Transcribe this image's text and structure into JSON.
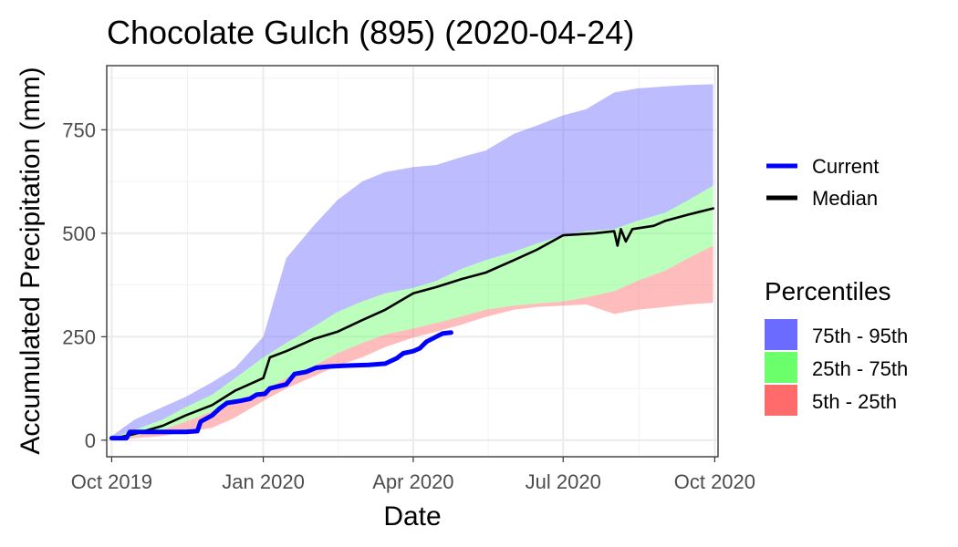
{
  "chart_data": {
    "type": "area",
    "title": "Chocolate Gulch (895) (2020-04-24)",
    "xlabel": "Date",
    "ylabel": "Accumulated Precipitation (mm)",
    "x_domain": [
      "2019-09-28",
      "2020-10-03"
    ],
    "ylim": [
      -40,
      905
    ],
    "x_ticks": [
      {
        "date": "2019-10-01",
        "label": "Oct 2019"
      },
      {
        "date": "2020-01-01",
        "label": "Jan 2020"
      },
      {
        "date": "2020-04-01",
        "label": "Apr 2020"
      },
      {
        "date": "2020-07-01",
        "label": "Jul 2020"
      },
      {
        "date": "2020-10-01",
        "label": "Oct 2020"
      }
    ],
    "y_ticks": [
      {
        "value": 0,
        "label": "0"
      },
      {
        "value": 250,
        "label": "250"
      },
      {
        "value": 500,
        "label": "500"
      },
      {
        "value": 750,
        "label": "750"
      }
    ],
    "grid": true,
    "legend_position": "right",
    "bands": [
      {
        "label": "75th - 95th",
        "color": "#6b6bff",
        "lower": [
          [
            "2019-10-01",
            5
          ],
          [
            "2019-10-15",
            25
          ],
          [
            "2019-11-01",
            50
          ],
          [
            "2019-11-15",
            80
          ],
          [
            "2019-12-01",
            110
          ],
          [
            "2019-12-15",
            150
          ],
          [
            "2020-01-01",
            200
          ],
          [
            "2020-01-15",
            235
          ],
          [
            "2020-02-01",
            275
          ],
          [
            "2020-02-15",
            310
          ],
          [
            "2020-03-01",
            335
          ],
          [
            "2020-03-15",
            355
          ],
          [
            "2020-04-01",
            368
          ],
          [
            "2020-04-15",
            385
          ],
          [
            "2020-05-01",
            415
          ],
          [
            "2020-05-15",
            435
          ],
          [
            "2020-06-01",
            455
          ],
          [
            "2020-06-15",
            475
          ],
          [
            "2020-07-01",
            495
          ],
          [
            "2020-07-15",
            505
          ],
          [
            "2020-08-01",
            510
          ],
          [
            "2020-08-15",
            530
          ],
          [
            "2020-09-01",
            550
          ],
          [
            "2020-09-15",
            580
          ],
          [
            "2020-09-30",
            615
          ]
        ],
        "upper": [
          [
            "2019-10-01",
            10
          ],
          [
            "2019-10-15",
            50
          ],
          [
            "2019-11-01",
            80
          ],
          [
            "2019-11-15",
            105
          ],
          [
            "2019-12-01",
            140
          ],
          [
            "2019-12-15",
            175
          ],
          [
            "2020-01-01",
            250
          ],
          [
            "2020-01-15",
            440
          ],
          [
            "2020-02-01",
            520
          ],
          [
            "2020-02-15",
            580
          ],
          [
            "2020-03-01",
            625
          ],
          [
            "2020-03-15",
            648
          ],
          [
            "2020-04-01",
            660
          ],
          [
            "2020-04-15",
            665
          ],
          [
            "2020-05-01",
            685
          ],
          [
            "2020-05-15",
            700
          ],
          [
            "2020-06-01",
            740
          ],
          [
            "2020-06-15",
            760
          ],
          [
            "2020-07-01",
            785
          ],
          [
            "2020-07-15",
            800
          ],
          [
            "2020-08-01",
            840
          ],
          [
            "2020-08-15",
            850
          ],
          [
            "2020-09-01",
            855
          ],
          [
            "2020-09-15",
            858
          ],
          [
            "2020-09-30",
            860
          ]
        ]
      },
      {
        "label": "25th - 75th",
        "color": "#6bff6b",
        "lower": [
          [
            "2019-10-01",
            3
          ],
          [
            "2019-10-15",
            10
          ],
          [
            "2019-11-01",
            25
          ],
          [
            "2019-11-15",
            45
          ],
          [
            "2019-12-01",
            70
          ],
          [
            "2019-12-15",
            95
          ],
          [
            "2020-01-01",
            120
          ],
          [
            "2020-01-15",
            150
          ],
          [
            "2020-02-01",
            180
          ],
          [
            "2020-02-15",
            210
          ],
          [
            "2020-03-01",
            235
          ],
          [
            "2020-03-15",
            255
          ],
          [
            "2020-04-01",
            270
          ],
          [
            "2020-04-15",
            283
          ],
          [
            "2020-05-01",
            300
          ],
          [
            "2020-05-15",
            315
          ],
          [
            "2020-06-01",
            325
          ],
          [
            "2020-06-15",
            330
          ],
          [
            "2020-07-01",
            335
          ],
          [
            "2020-07-15",
            345
          ],
          [
            "2020-08-01",
            360
          ],
          [
            "2020-08-15",
            385
          ],
          [
            "2020-09-01",
            410
          ],
          [
            "2020-09-15",
            440
          ],
          [
            "2020-09-30",
            470
          ]
        ],
        "upper": [
          [
            "2019-10-01",
            5
          ],
          [
            "2019-10-15",
            25
          ],
          [
            "2019-11-01",
            50
          ],
          [
            "2019-11-15",
            80
          ],
          [
            "2019-12-01",
            110
          ],
          [
            "2019-12-15",
            150
          ],
          [
            "2020-01-01",
            200
          ],
          [
            "2020-01-15",
            235
          ],
          [
            "2020-02-01",
            275
          ],
          [
            "2020-02-15",
            310
          ],
          [
            "2020-03-01",
            335
          ],
          [
            "2020-03-15",
            355
          ],
          [
            "2020-04-01",
            368
          ],
          [
            "2020-04-15",
            385
          ],
          [
            "2020-05-01",
            415
          ],
          [
            "2020-05-15",
            435
          ],
          [
            "2020-06-01",
            455
          ],
          [
            "2020-06-15",
            475
          ],
          [
            "2020-07-01",
            495
          ],
          [
            "2020-07-15",
            505
          ],
          [
            "2020-08-01",
            510
          ],
          [
            "2020-08-15",
            530
          ],
          [
            "2020-09-01",
            550
          ],
          [
            "2020-09-15",
            580
          ],
          [
            "2020-09-30",
            615
          ]
        ]
      },
      {
        "label": "5th - 25th",
        "color": "#ff6b6b",
        "lower": [
          [
            "2019-10-01",
            0
          ],
          [
            "2019-10-15",
            5
          ],
          [
            "2019-11-01",
            10
          ],
          [
            "2019-11-15",
            20
          ],
          [
            "2019-12-01",
            30
          ],
          [
            "2019-12-15",
            55
          ],
          [
            "2020-01-01",
            95
          ],
          [
            "2020-01-15",
            125
          ],
          [
            "2020-02-01",
            155
          ],
          [
            "2020-02-15",
            180
          ],
          [
            "2020-03-01",
            200
          ],
          [
            "2020-03-15",
            225
          ],
          [
            "2020-04-01",
            248
          ],
          [
            "2020-04-15",
            262
          ],
          [
            "2020-05-01",
            280
          ],
          [
            "2020-05-15",
            298
          ],
          [
            "2020-06-01",
            315
          ],
          [
            "2020-06-15",
            322
          ],
          [
            "2020-07-01",
            325
          ],
          [
            "2020-07-15",
            328
          ],
          [
            "2020-08-01",
            305
          ],
          [
            "2020-08-15",
            315
          ],
          [
            "2020-09-01",
            322
          ],
          [
            "2020-09-15",
            328
          ],
          [
            "2020-09-30",
            332
          ]
        ],
        "upper": [
          [
            "2019-10-01",
            3
          ],
          [
            "2019-10-15",
            10
          ],
          [
            "2019-11-01",
            25
          ],
          [
            "2019-11-15",
            45
          ],
          [
            "2019-12-01",
            70
          ],
          [
            "2019-12-15",
            95
          ],
          [
            "2020-01-01",
            120
          ],
          [
            "2020-01-15",
            150
          ],
          [
            "2020-02-01",
            180
          ],
          [
            "2020-02-15",
            210
          ],
          [
            "2020-03-01",
            235
          ],
          [
            "2020-03-15",
            255
          ],
          [
            "2020-04-01",
            270
          ],
          [
            "2020-04-15",
            283
          ],
          [
            "2020-05-01",
            300
          ],
          [
            "2020-05-15",
            315
          ],
          [
            "2020-06-01",
            325
          ],
          [
            "2020-06-15",
            330
          ],
          [
            "2020-07-01",
            335
          ],
          [
            "2020-07-15",
            345
          ],
          [
            "2020-08-01",
            360
          ],
          [
            "2020-08-15",
            385
          ],
          [
            "2020-09-01",
            410
          ],
          [
            "2020-09-15",
            440
          ],
          [
            "2020-09-30",
            470
          ]
        ]
      }
    ],
    "series": [
      {
        "name": "Current",
        "color": "#0000ff",
        "points": [
          [
            "2019-10-01",
            5
          ],
          [
            "2019-10-10",
            5
          ],
          [
            "2019-10-12",
            20
          ],
          [
            "2019-11-15",
            20
          ],
          [
            "2019-11-22",
            22
          ],
          [
            "2019-11-24",
            45
          ],
          [
            "2019-12-01",
            60
          ],
          [
            "2019-12-05",
            75
          ],
          [
            "2019-12-10",
            90
          ],
          [
            "2019-12-18",
            95
          ],
          [
            "2019-12-24",
            100
          ],
          [
            "2019-12-28",
            110
          ],
          [
            "2020-01-02",
            112
          ],
          [
            "2020-01-05",
            125
          ],
          [
            "2020-01-15",
            135
          ],
          [
            "2020-01-20",
            160
          ],
          [
            "2020-01-27",
            165
          ],
          [
            "2020-02-02",
            175
          ],
          [
            "2020-02-10",
            178
          ],
          [
            "2020-02-20",
            180
          ],
          [
            "2020-03-05",
            182
          ],
          [
            "2020-03-15",
            185
          ],
          [
            "2020-03-22",
            198
          ],
          [
            "2020-03-26",
            210
          ],
          [
            "2020-04-01",
            215
          ],
          [
            "2020-04-05",
            222
          ],
          [
            "2020-04-09",
            238
          ],
          [
            "2020-04-15",
            250
          ],
          [
            "2020-04-19",
            258
          ],
          [
            "2020-04-24",
            260
          ]
        ]
      },
      {
        "name": "Median",
        "color": "#000000",
        "points": [
          [
            "2019-10-01",
            3
          ],
          [
            "2019-10-15",
            15
          ],
          [
            "2019-11-01",
            35
          ],
          [
            "2019-11-15",
            60
          ],
          [
            "2019-12-01",
            85
          ],
          [
            "2019-12-15",
            120
          ],
          [
            "2020-01-01",
            150
          ],
          [
            "2020-01-05",
            200
          ],
          [
            "2020-01-15",
            215
          ],
          [
            "2020-02-01",
            245
          ],
          [
            "2020-02-15",
            262
          ],
          [
            "2020-03-01",
            290
          ],
          [
            "2020-03-15",
            315
          ],
          [
            "2020-04-01",
            355
          ],
          [
            "2020-04-15",
            370
          ],
          [
            "2020-05-01",
            390
          ],
          [
            "2020-05-15",
            405
          ],
          [
            "2020-06-01",
            435
          ],
          [
            "2020-06-15",
            460
          ],
          [
            "2020-07-01",
            495
          ],
          [
            "2020-07-20",
            500
          ],
          [
            "2020-08-01",
            505
          ],
          [
            "2020-08-03",
            470
          ],
          [
            "2020-08-05",
            510
          ],
          [
            "2020-08-08",
            480
          ],
          [
            "2020-08-12",
            510
          ],
          [
            "2020-08-25",
            518
          ],
          [
            "2020-09-01",
            530
          ],
          [
            "2020-09-15",
            545
          ],
          [
            "2020-09-30",
            560
          ]
        ]
      }
    ],
    "legend_series_entries": [
      "Current",
      "Median"
    ],
    "legend_band_title": "Percentiles",
    "legend_band_entries": [
      "75th - 95th",
      "25th - 75th",
      "5th - 25th"
    ]
  }
}
